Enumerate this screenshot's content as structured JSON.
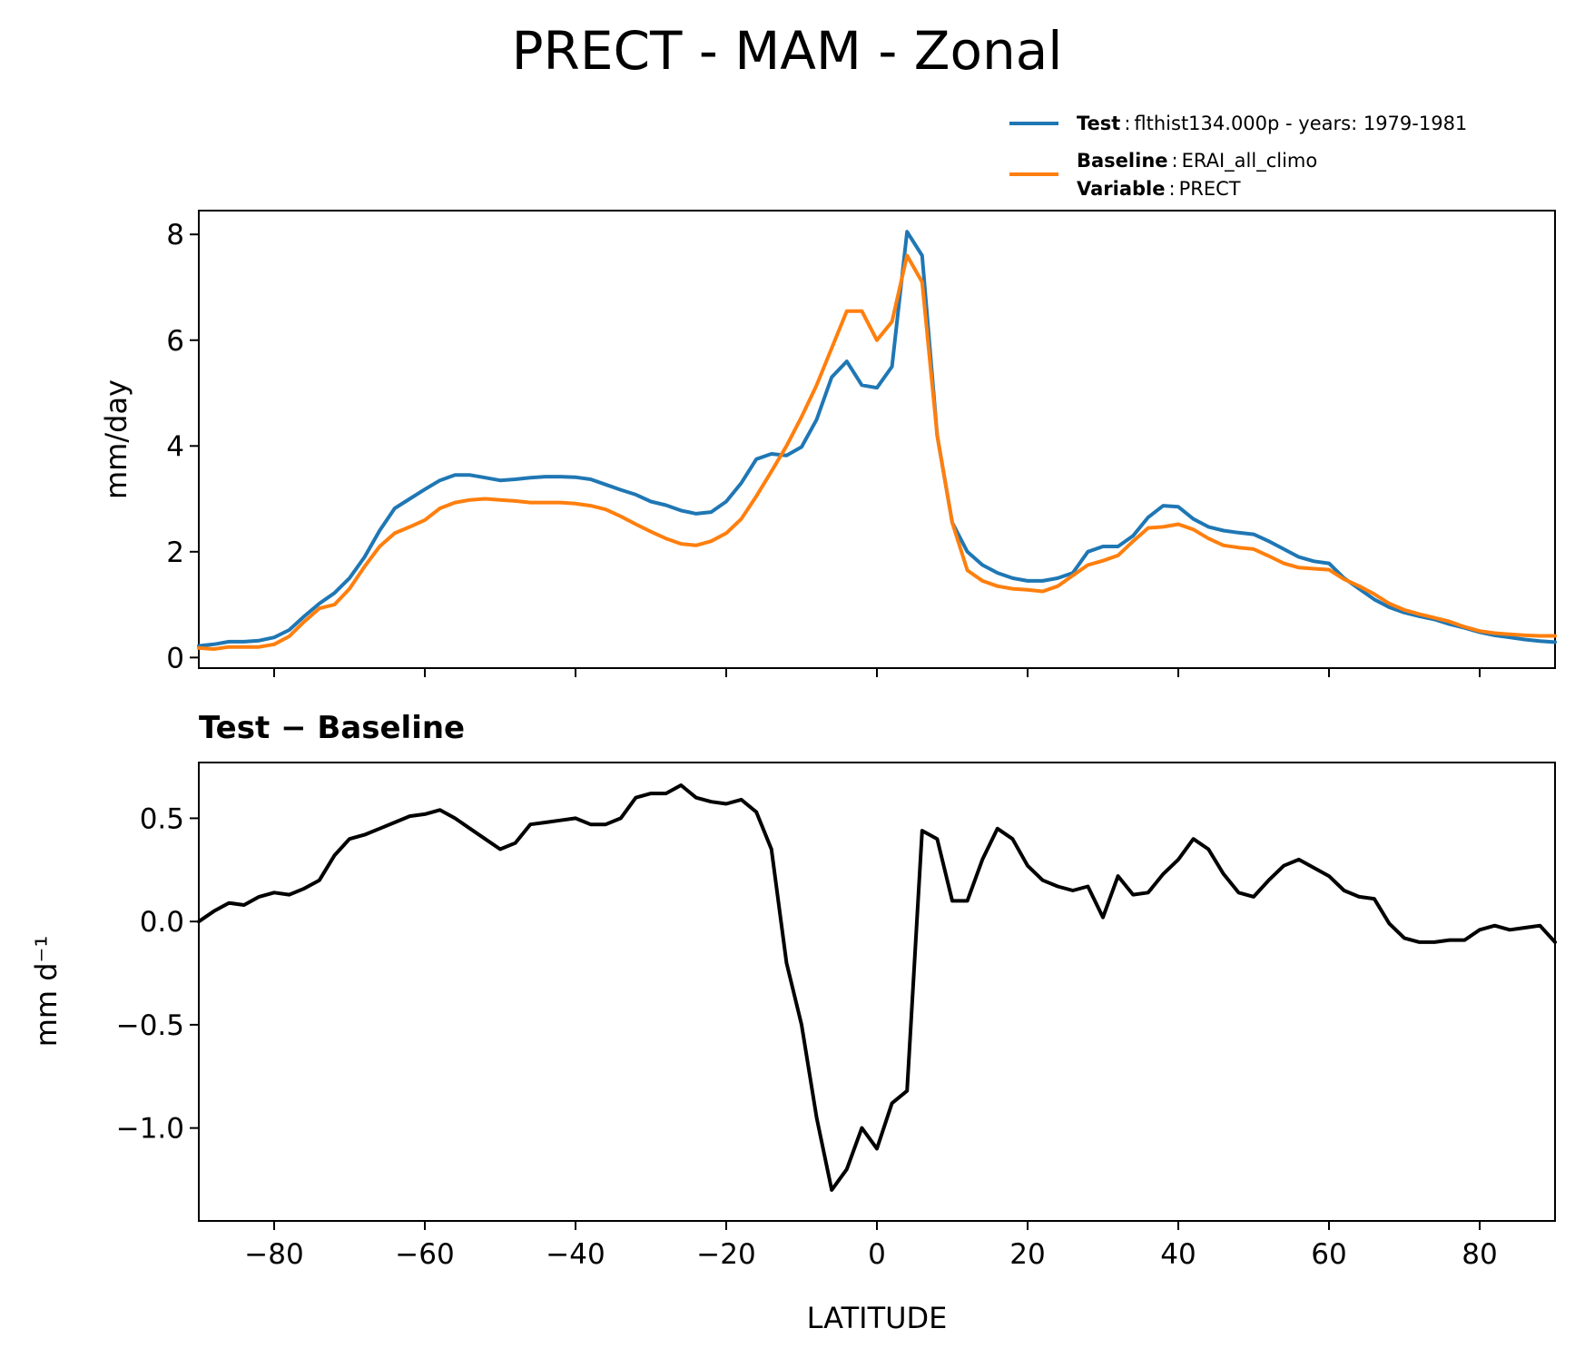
{
  "title": "PRECT - MAM - Zonal",
  "legend": {
    "test_key": "Test",
    "test_value": "flthist134.000p - years: 1979-1981",
    "base_key": "Baseline",
    "base_value": "ERAI_all_climo",
    "var_key": "Variable",
    "var_value": "PRECT",
    "sep": ":"
  },
  "colors": {
    "test": "#1f77b4",
    "baseline": "#ff7f0e",
    "diff": "#000000"
  },
  "top_ylabel": "mm/day",
  "bottom_title": "Test − Baseline",
  "bottom_ylabel": "mm d⁻¹",
  "xlabel": "LATITUDE",
  "chart_data": [
    {
      "type": "line",
      "xlim": [
        -90,
        90
      ],
      "ylim": [
        -0.2,
        8.45
      ],
      "x_ticks": [
        -80,
        -60,
        -40,
        -20,
        0,
        20,
        40,
        60,
        80
      ],
      "y_ticks": [
        0,
        2,
        4,
        6,
        8
      ],
      "ylabel": "mm/day",
      "series": [
        {
          "name": "Test",
          "x": [
            -90,
            -88,
            -86,
            -84,
            -82,
            -80,
            -78,
            -76,
            -74,
            -72,
            -70,
            -68,
            -66,
            -64,
            -62,
            -60,
            -58,
            -56,
            -54,
            -52,
            -50,
            -48,
            -46,
            -44,
            -42,
            -40,
            -38,
            -36,
            -34,
            -32,
            -30,
            -28,
            -26,
            -24,
            -22,
            -20,
            -18,
            -16,
            -14,
            -12,
            -10,
            -8,
            -6,
            -4,
            -2,
            0,
            2,
            4,
            6,
            8,
            10,
            12,
            14,
            16,
            18,
            20,
            22,
            24,
            26,
            28,
            30,
            32,
            34,
            36,
            38,
            40,
            42,
            44,
            46,
            48,
            50,
            52,
            54,
            56,
            58,
            60,
            62,
            64,
            66,
            68,
            70,
            72,
            74,
            76,
            78,
            80,
            82,
            84,
            86,
            88,
            90
          ],
          "values": [
            0.22,
            0.25,
            0.3,
            0.3,
            0.32,
            0.38,
            0.52,
            0.78,
            1.02,
            1.22,
            1.5,
            1.9,
            2.4,
            2.82,
            3.0,
            3.18,
            3.35,
            3.45,
            3.45,
            3.4,
            3.35,
            3.37,
            3.4,
            3.42,
            3.42,
            3.41,
            3.37,
            3.27,
            3.17,
            3.08,
            2.95,
            2.88,
            2.78,
            2.72,
            2.75,
            2.95,
            3.3,
            3.75,
            3.85,
            3.82,
            3.98,
            4.5,
            5.3,
            5.6,
            5.15,
            5.1,
            5.5,
            8.05,
            7.6,
            4.2,
            2.55,
            2.0,
            1.75,
            1.6,
            1.5,
            1.45,
            1.45,
            1.5,
            1.6,
            2.0,
            2.1,
            2.1,
            2.3,
            2.65,
            2.87,
            2.85,
            2.62,
            2.47,
            2.4,
            2.36,
            2.33,
            2.2,
            2.05,
            1.9,
            1.82,
            1.78,
            1.5,
            1.3,
            1.1,
            0.95,
            0.85,
            0.78,
            0.72,
            0.63,
            0.56,
            0.48,
            0.42,
            0.38,
            0.34,
            0.31,
            0.29
          ]
        },
        {
          "name": "Baseline",
          "x": [
            -90,
            -88,
            -86,
            -84,
            -82,
            -80,
            -78,
            -76,
            -74,
            -72,
            -70,
            -68,
            -66,
            -64,
            -62,
            -60,
            -58,
            -56,
            -54,
            -52,
            -50,
            -48,
            -46,
            -44,
            -42,
            -40,
            -38,
            -36,
            -34,
            -32,
            -30,
            -28,
            -26,
            -24,
            -22,
            -20,
            -18,
            -16,
            -14,
            -12,
            -10,
            -8,
            -6,
            -4,
            -2,
            0,
            2,
            4,
            6,
            8,
            10,
            12,
            14,
            16,
            18,
            20,
            22,
            24,
            26,
            28,
            30,
            32,
            34,
            36,
            38,
            40,
            42,
            44,
            46,
            48,
            50,
            52,
            54,
            56,
            58,
            60,
            62,
            64,
            66,
            68,
            70,
            72,
            74,
            76,
            78,
            80,
            82,
            84,
            86,
            88,
            90
          ],
          "values": [
            0.18,
            0.16,
            0.2,
            0.2,
            0.2,
            0.25,
            0.4,
            0.68,
            0.93,
            1.0,
            1.3,
            1.72,
            2.1,
            2.35,
            2.47,
            2.6,
            2.82,
            2.93,
            2.98,
            3.0,
            2.98,
            2.96,
            2.93,
            2.93,
            2.93,
            2.91,
            2.87,
            2.8,
            2.67,
            2.52,
            2.38,
            2.25,
            2.15,
            2.12,
            2.2,
            2.35,
            2.62,
            3.05,
            3.52,
            4.0,
            4.55,
            5.15,
            5.85,
            6.55,
            6.55,
            6.0,
            6.35,
            7.6,
            7.1,
            4.2,
            2.55,
            1.65,
            1.45,
            1.35,
            1.3,
            1.28,
            1.25,
            1.35,
            1.55,
            1.75,
            1.83,
            1.93,
            2.2,
            2.45,
            2.47,
            2.52,
            2.42,
            2.25,
            2.12,
            2.08,
            2.05,
            1.92,
            1.78,
            1.7,
            1.68,
            1.66,
            1.48,
            1.35,
            1.2,
            1.02,
            0.9,
            0.82,
            0.75,
            0.68,
            0.58,
            0.5,
            0.46,
            0.44,
            0.42,
            0.41,
            0.41
          ]
        }
      ]
    },
    {
      "type": "line",
      "title": "Test − Baseline",
      "xlim": [
        -90,
        90
      ],
      "ylim": [
        -1.45,
        0.77
      ],
      "x_ticks": [
        -80,
        -60,
        -40,
        -20,
        0,
        20,
        40,
        60,
        80
      ],
      "y_ticks": [
        0.5,
        0.0,
        -0.5,
        -1.0
      ],
      "y_tick_labels": [
        "0.5",
        "0.0",
        "−0.5",
        "−1.0"
      ],
      "x_tick_labels": [
        "−80",
        "−60",
        "−40",
        "−20",
        "0",
        "20",
        "40",
        "60",
        "80"
      ],
      "xlabel": "LATITUDE",
      "ylabel": "mm d⁻¹",
      "series": [
        {
          "x": [
            -90,
            -88,
            -86,
            -84,
            -82,
            -80,
            -78,
            -76,
            -74,
            -72,
            -70,
            -68,
            -66,
            -64,
            -62,
            -60,
            -58,
            -56,
            -54,
            -52,
            -50,
            -48,
            -46,
            -44,
            -42,
            -40,
            -38,
            -36,
            -34,
            -32,
            -30,
            -28,
            -26,
            -24,
            -22,
            -20,
            -18,
            -16,
            -14,
            -12,
            -10,
            -8,
            -6,
            -4,
            -2,
            0,
            2,
            4,
            6,
            8,
            10,
            12,
            14,
            16,
            18,
            20,
            22,
            24,
            26,
            28,
            30,
            32,
            34,
            36,
            38,
            40,
            42,
            44,
            46,
            48,
            50,
            52,
            54,
            56,
            58,
            60,
            62,
            64,
            66,
            68,
            70,
            72,
            74,
            76,
            78,
            80,
            82,
            84,
            86,
            88,
            90
          ],
          "values": [
            0.0,
            0.05,
            0.09,
            0.08,
            0.12,
            0.14,
            0.13,
            0.16,
            0.2,
            0.32,
            0.4,
            0.42,
            0.45,
            0.48,
            0.51,
            0.52,
            0.54,
            0.5,
            0.45,
            0.4,
            0.35,
            0.38,
            0.47,
            0.48,
            0.49,
            0.5,
            0.47,
            0.47,
            0.5,
            0.6,
            0.62,
            0.62,
            0.66,
            0.6,
            0.58,
            0.57,
            0.59,
            0.53,
            0.35,
            -0.2,
            -0.5,
            -0.95,
            -1.3,
            -1.2,
            -1.0,
            -1.1,
            -0.88,
            -0.82,
            0.44,
            0.4,
            0.1,
            0.1,
            0.3,
            0.45,
            0.4,
            0.27,
            0.2,
            0.17,
            0.15,
            0.17,
            0.02,
            0.22,
            0.13,
            0.14,
            0.23,
            0.3,
            0.4,
            0.35,
            0.23,
            0.14,
            0.12,
            0.2,
            0.27,
            0.3,
            0.26,
            0.22,
            0.15,
            0.12,
            0.11,
            -0.01,
            -0.08,
            -0.1,
            -0.1,
            -0.09,
            -0.09,
            -0.04,
            -0.02,
            -0.04,
            -0.03,
            -0.02,
            -0.1
          ]
        }
      ]
    }
  ]
}
